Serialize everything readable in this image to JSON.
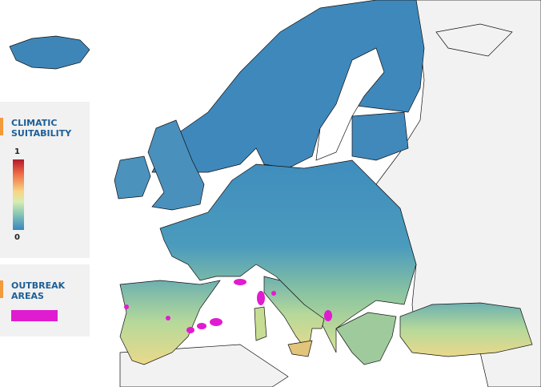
{
  "legend": {
    "suitability": {
      "title": "CLIMATIC SUITABILITY",
      "max": 1,
      "min": 0
    },
    "outbreak": {
      "title": "OUTBREAK AREAS"
    }
  }
}
